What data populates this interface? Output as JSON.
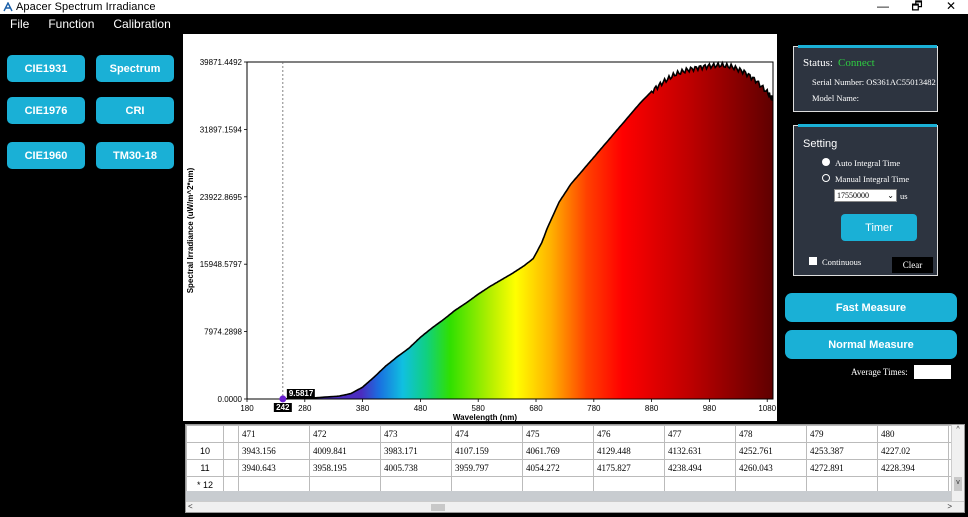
{
  "window": {
    "title": "Apacer Spectrum  Irradiance",
    "controls": {
      "minimize": "—",
      "maximize": "🗗",
      "close": "✕"
    }
  },
  "menu": {
    "items": [
      "File",
      "Function",
      "Calibration"
    ]
  },
  "left_buttons": {
    "cie1931": "CIE1931",
    "spectrum": "Spectrum",
    "cie1976": "CIE1976",
    "cri": "CRI",
    "cie1960": "CIE1960",
    "tm3018": "TM30-18"
  },
  "chart_data": {
    "type": "area",
    "xlabel": "Wavelength (nm)",
    "ylabel": "Spectral Irradiance (uW/m^2*nm)",
    "xlim": [
      180,
      1090
    ],
    "ylim": [
      0,
      39871.4492
    ],
    "x_ticks": [
      "180",
      "280",
      "380",
      "480",
      "580",
      "680",
      "780",
      "880",
      "980",
      "1080"
    ],
    "x_tick_values": [
      180,
      280,
      380,
      480,
      580,
      680,
      780,
      880,
      980,
      1080
    ],
    "y_ticks": [
      "0.0000",
      "7974.2898",
      "15948.5797",
      "23922.8695",
      "31897.1594",
      "39871.4492"
    ],
    "y_tick_values": [
      0,
      7974.2898,
      15948.5797,
      23922.8695,
      31897.1594,
      39871.4492
    ],
    "fill": "spectrum-gradient",
    "cursor": {
      "x": 242,
      "x_label": "242",
      "y": 9.5817,
      "y_label": "9.5817",
      "marker_color": "#6a1fd0"
    },
    "x": [
      238,
      260,
      300,
      340,
      360,
      380,
      400,
      420,
      440,
      460,
      480,
      500,
      520,
      540,
      560,
      580,
      600,
      620,
      640,
      660,
      675,
      690,
      700,
      720,
      740,
      760,
      780,
      800,
      820,
      840,
      860,
      880,
      900,
      920,
      940,
      960,
      980,
      1000,
      1020,
      1040,
      1060,
      1080,
      1090
    ],
    "y": [
      0,
      50,
      150,
      350,
      650,
      1400,
      2600,
      3900,
      5000,
      6000,
      7300,
      8400,
      9400,
      10500,
      11400,
      12400,
      13300,
      14100,
      14900,
      15800,
      16600,
      18500,
      20300,
      23300,
      25400,
      27000,
      28600,
      30200,
      31800,
      33400,
      35000,
      36400,
      37500,
      38400,
      38900,
      39200,
      39400,
      39500,
      39300,
      38700,
      37700,
      36300,
      35400
    ]
  },
  "table": {
    "columns": [
      "471",
      "472",
      "473",
      "474",
      "475",
      "476",
      "477",
      "478",
      "479",
      "480",
      "4"
    ],
    "rows": [
      {
        "id": "10",
        "cells": [
          "3943.156",
          "4009.841",
          "3983.171",
          "4107.159",
          "4061.769",
          "4129.448",
          "4132.631",
          "4252.761",
          "4253.387",
          "4227.02",
          "4"
        ]
      },
      {
        "id": "11",
        "cells": [
          "3940.643",
          "3958.195",
          "4005.738",
          "3959.797",
          "4054.272",
          "4175.827",
          "4238.494",
          "4260.043",
          "4272.891",
          "4228.394",
          "4"
        ]
      },
      {
        "id": "12",
        "marker": "*",
        "cells": [
          "",
          "",
          "",
          "",
          "",
          "",
          "",
          "",
          "",
          "",
          ""
        ]
      }
    ],
    "scroll": {
      "left": "<",
      "right": ">",
      "up": "^",
      "down": "v"
    }
  },
  "status": {
    "label": "Status:",
    "value": "Connect",
    "value_color": "#2ecc40",
    "serial_number": "Serial Number: OS361AC55013482",
    "model_name": "Model Name:"
  },
  "setting": {
    "title": "Setting",
    "auto_integral_time": "Auto Integral Time",
    "manual_integral_time": "Manual Integral Time",
    "integral_value": "17550000",
    "unit": "us",
    "timer": "Timer",
    "continuous": "Continuous",
    "clear": "Clear"
  },
  "actions": {
    "fast_measure": "Fast Measure",
    "normal_measure": "Normal Measure",
    "average_times_label": "Average Times:",
    "average_times_value": ""
  },
  "colors": {
    "accent": "#1ab0d6",
    "panel": "#2d3440",
    "background": "#000000"
  }
}
